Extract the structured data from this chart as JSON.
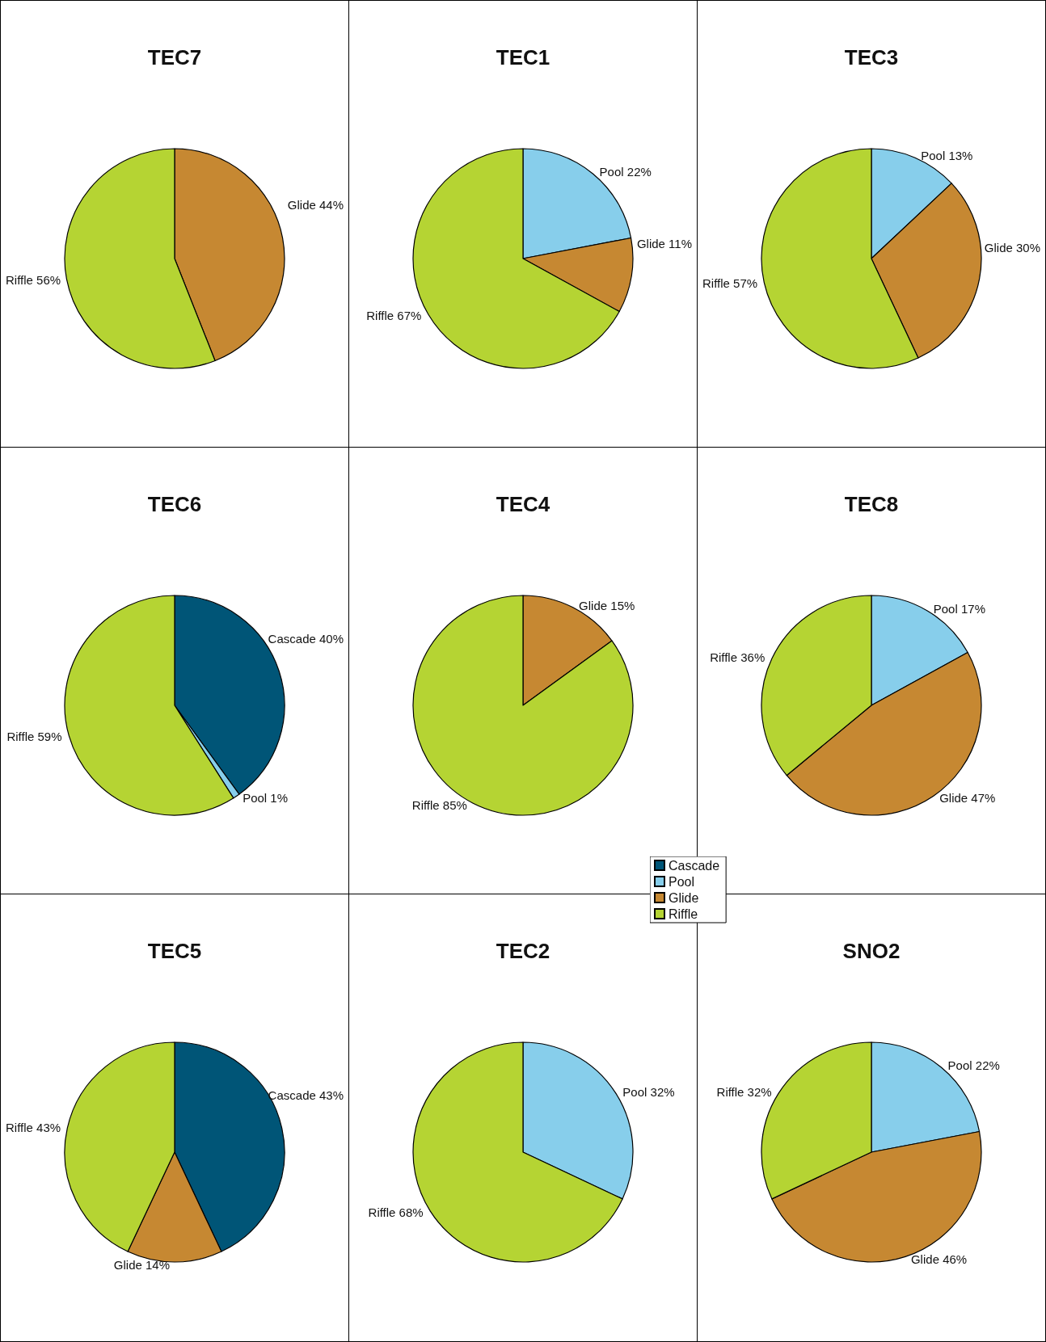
{
  "chart_data": [
    {
      "type": "pie",
      "title": "TEC7",
      "categories": [
        "Glide",
        "Riffle"
      ],
      "values": [
        44,
        56
      ],
      "value_labels": [
        "44%",
        "56%"
      ],
      "colors": [
        "#c68832",
        "#b5d433"
      ]
    },
    {
      "type": "pie",
      "title": "TEC1",
      "categories": [
        "Pool",
        "Glide",
        "Riffle"
      ],
      "values": [
        22,
        11,
        67
      ],
      "value_labels": [
        "22%",
        "11%",
        "67%"
      ],
      "colors": [
        "#87ceeb",
        "#c68832",
        "#b5d433"
      ]
    },
    {
      "type": "pie",
      "title": "TEC3",
      "categories": [
        "Pool",
        "Glide",
        "Riffle"
      ],
      "values": [
        13,
        30,
        57
      ],
      "value_labels": [
        "13%",
        "30%",
        "57%"
      ],
      "colors": [
        "#87ceeb",
        "#c68832",
        "#b5d433"
      ]
    },
    {
      "type": "pie",
      "title": "TEC6",
      "categories": [
        "Cascade",
        "Pool",
        "Riffle"
      ],
      "values": [
        40,
        1,
        59
      ],
      "value_labels": [
        "40%",
        "1%",
        "59%"
      ],
      "colors": [
        "#005577",
        "#87ceeb",
        "#b5d433"
      ]
    },
    {
      "type": "pie",
      "title": "TEC4",
      "categories": [
        "Glide",
        "Riffle"
      ],
      "values": [
        15,
        85
      ],
      "value_labels": [
        "15%",
        "85%"
      ],
      "colors": [
        "#c68832",
        "#b5d433"
      ]
    },
    {
      "type": "pie",
      "title": "TEC8",
      "categories": [
        "Pool",
        "Glide",
        "Riffle"
      ],
      "values": [
        17,
        47,
        36
      ],
      "value_labels": [
        "17%",
        "47%",
        "36%"
      ],
      "colors": [
        "#87ceeb",
        "#c68832",
        "#b5d433"
      ]
    },
    {
      "type": "pie",
      "title": "TEC5",
      "categories": [
        "Cascade",
        "Glide",
        "Riffle"
      ],
      "values": [
        43,
        14,
        43
      ],
      "value_labels": [
        "43%",
        "14%",
        "43%"
      ],
      "colors": [
        "#005577",
        "#c68832",
        "#b5d433"
      ]
    },
    {
      "type": "pie",
      "title": "TEC2",
      "categories": [
        "Pool",
        "Riffle"
      ],
      "values": [
        32,
        68
      ],
      "value_labels": [
        "32%",
        "68%"
      ],
      "colors": [
        "#87ceeb",
        "#b5d433"
      ]
    },
    {
      "type": "pie",
      "title": "SNO2",
      "categories": [
        "Pool",
        "Glide",
        "Riffle"
      ],
      "values": [
        22,
        46,
        32
      ],
      "value_labels": [
        "22%",
        "46%",
        "32%"
      ],
      "colors": [
        "#87ceeb",
        "#c68832",
        "#b5d433"
      ]
    },
    {
      "type": "other",
      "categories": [
        "Cascade",
        "Pool",
        "Glide",
        "Riffle"
      ],
      "colors": [
        "#005577",
        "#87ceeb",
        "#c68832",
        "#b5d433"
      ]
    }
  ]
}
